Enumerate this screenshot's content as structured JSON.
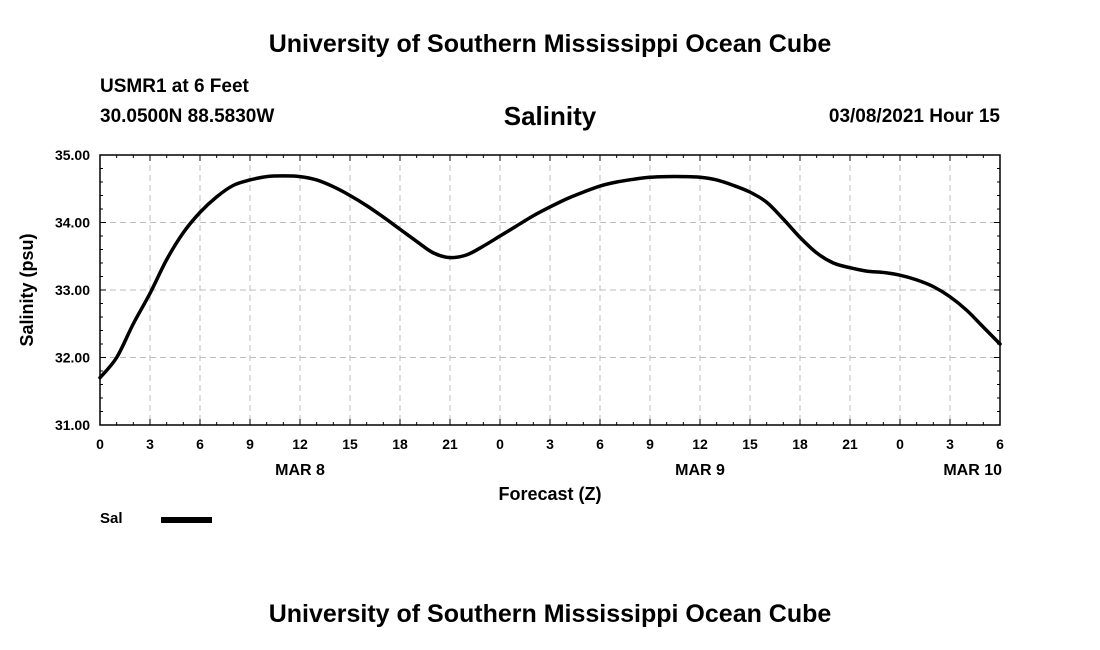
{
  "header": {
    "title": "University of Southern Mississippi Ocean Cube",
    "footer_title": "University of Southern Mississippi Ocean Cube",
    "station": "USMR1 at 6 Feet",
    "coords": "30.0500N 88.5830W",
    "date": "03/08/2021 Hour 15"
  },
  "chart_data": {
    "type": "line",
    "title": "Salinity",
    "ylabel": "Salinity (psu)",
    "xlabel": "Forecast (Z)",
    "ylim": [
      31.0,
      35.0
    ],
    "y_ticks": [
      "31.00",
      "32.00",
      "33.00",
      "34.00",
      "35.00"
    ],
    "x_ticks": [
      "0",
      "3",
      "6",
      "9",
      "12",
      "15",
      "18",
      "21",
      "0",
      "3",
      "6",
      "9",
      "12",
      "15",
      "18",
      "21",
      "0",
      "3",
      "6"
    ],
    "date_labels": [
      "MAR 8",
      "MAR 9",
      "MAR 10"
    ],
    "grid": true,
    "legend": "bottom-left",
    "x_unit": "forecast hours (Z)",
    "series": [
      {
        "name": "Sal",
        "color": "#000000",
        "points": [
          [
            0,
            31.7
          ],
          [
            1,
            32.0
          ],
          [
            2,
            32.5
          ],
          [
            3,
            32.95
          ],
          [
            4,
            33.45
          ],
          [
            5,
            33.85
          ],
          [
            6,
            34.15
          ],
          [
            7,
            34.38
          ],
          [
            8,
            34.55
          ],
          [
            9,
            34.63
          ],
          [
            10,
            34.68
          ],
          [
            11,
            34.69
          ],
          [
            12,
            34.68
          ],
          [
            13,
            34.63
          ],
          [
            14,
            34.53
          ],
          [
            15,
            34.4
          ],
          [
            16,
            34.25
          ],
          [
            17,
            34.08
          ],
          [
            18,
            33.9
          ],
          [
            19,
            33.72
          ],
          [
            20,
            33.55
          ],
          [
            21,
            33.48
          ],
          [
            22,
            33.52
          ],
          [
            23,
            33.65
          ],
          [
            24,
            33.8
          ],
          [
            25,
            33.95
          ],
          [
            26,
            34.1
          ],
          [
            27,
            34.23
          ],
          [
            28,
            34.35
          ],
          [
            29,
            34.45
          ],
          [
            30,
            34.54
          ],
          [
            31,
            34.6
          ],
          [
            32,
            34.64
          ],
          [
            33,
            34.67
          ],
          [
            34,
            34.68
          ],
          [
            35,
            34.68
          ],
          [
            36,
            34.67
          ],
          [
            37,
            34.63
          ],
          [
            38,
            34.55
          ],
          [
            39,
            34.45
          ],
          [
            40,
            34.3
          ],
          [
            41,
            34.05
          ],
          [
            42,
            33.78
          ],
          [
            43,
            33.55
          ],
          [
            44,
            33.4
          ],
          [
            45,
            33.33
          ],
          [
            46,
            33.28
          ],
          [
            47,
            33.26
          ],
          [
            48,
            33.22
          ],
          [
            49,
            33.15
          ],
          [
            50,
            33.05
          ],
          [
            51,
            32.9
          ],
          [
            52,
            32.7
          ],
          [
            53,
            32.45
          ],
          [
            54,
            32.2
          ]
        ]
      }
    ]
  }
}
